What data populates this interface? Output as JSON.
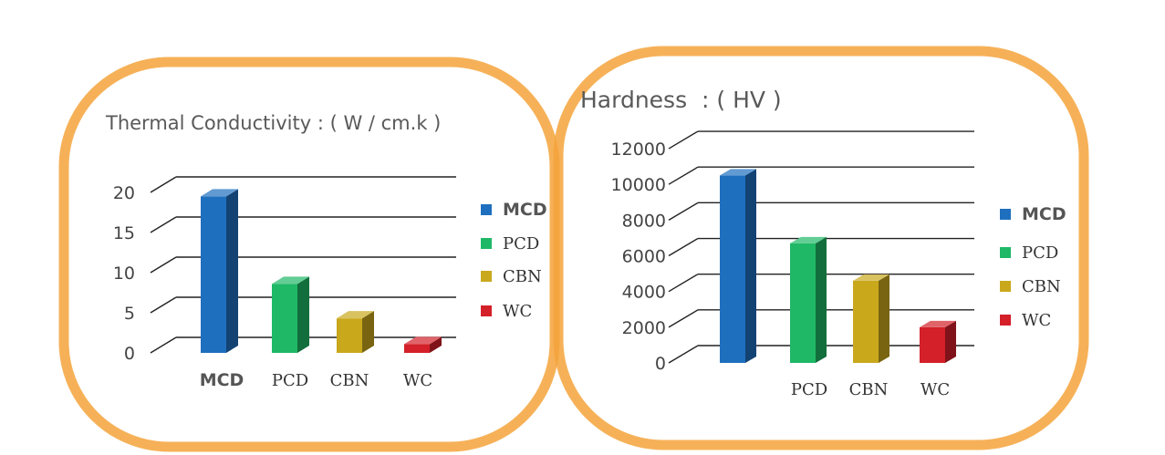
{
  "chart_data": [
    {
      "type": "bar",
      "title": "Thermal Conductivity : ( W / cm.k )",
      "categories": [
        "MCD",
        "PCD",
        "CBN",
        "WC"
      ],
      "values": [
        19.5,
        8.6,
        4.3,
        1.1
      ],
      "yticks": [
        "0",
        "5",
        "10",
        "15",
        "20"
      ],
      "ylim": [
        0,
        25
      ],
      "legend": [
        "MCD",
        "PCD",
        "CBN",
        "WC"
      ],
      "legend_position": "right",
      "grid": true
    },
    {
      "type": "bar",
      "title": "Hardness  : ( HV )",
      "categories": [
        "MCD",
        "PCD",
        "CBN",
        "WC"
      ],
      "category_labels_shown": [
        "",
        "PCD",
        "CBN",
        "WC"
      ],
      "values": [
        10500,
        6700,
        4600,
        2000
      ],
      "yticks": [
        "0",
        "2000",
        "4000",
        "6000",
        "8000",
        "10000",
        "12000"
      ],
      "ylim": [
        0,
        12000
      ],
      "legend": [
        "MCD",
        "PCD",
        "CBN",
        "WC"
      ],
      "legend_position": "right",
      "grid": true
    }
  ],
  "colors": {
    "frame": "#f5a33b",
    "MCD": "#1f6fbf",
    "PCD": "#1fb866",
    "CBN": "#c9a81c",
    "WC": "#d32029",
    "grid": "#222222"
  }
}
